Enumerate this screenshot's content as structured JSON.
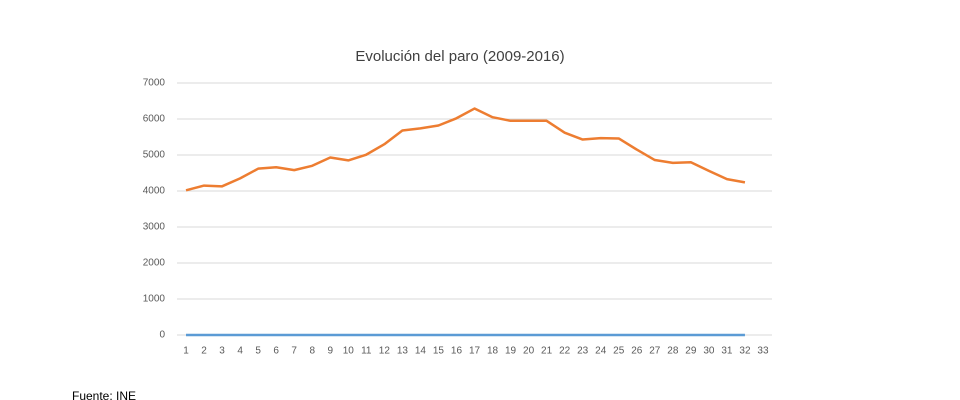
{
  "chart_data": {
    "type": "line",
    "title": "Evolución del paro (2009-2016)",
    "categories": [
      "1",
      "2",
      "3",
      "4",
      "5",
      "6",
      "7",
      "8",
      "9",
      "10",
      "11",
      "12",
      "13",
      "14",
      "15",
      "16",
      "17",
      "18",
      "19",
      "20",
      "21",
      "22",
      "23",
      "24",
      "25",
      "26",
      "27",
      "28",
      "29",
      "30",
      "31",
      "32",
      "33"
    ],
    "series": [
      {
        "color": "#5b9bd5",
        "values": [
          0,
          0,
          0,
          0,
          0,
          0,
          0,
          0,
          0,
          0,
          0,
          0,
          0,
          0,
          0,
          0,
          0,
          0,
          0,
          0,
          0,
          0,
          0,
          0,
          0,
          0,
          0,
          0,
          0,
          0,
          0,
          0,
          null
        ]
      },
      {
        "color": "#ed7d31",
        "values": [
          4020,
          4150,
          4130,
          4350,
          4620,
          4660,
          4580,
          4700,
          4930,
          4850,
          5010,
          5300,
          5680,
          5740,
          5820,
          6020,
          6290,
          6050,
          5950,
          5950,
          5950,
          5620,
          5430,
          5470,
          5460,
          5150,
          4860,
          4780,
          4800,
          4560,
          4330,
          4240,
          null
        ]
      }
    ],
    "ylim": [
      0,
      7000
    ],
    "yticks": [
      0,
      1000,
      2000,
      3000,
      4000,
      5000,
      6000,
      7000
    ],
    "grid": true,
    "footnote": "Fuente: INE"
  }
}
